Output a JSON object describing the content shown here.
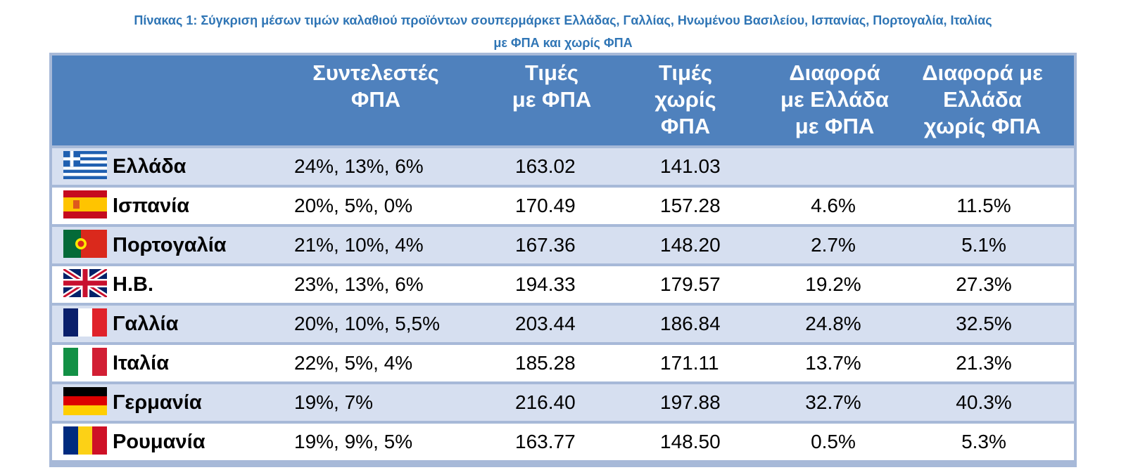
{
  "caption": {
    "line1": "Πίνακας 1: Σύγκριση μέσων τιμών καλαθιού προϊόντων σουπερμάρκετ Ελλάδας, Γαλλίας, Ηνωμένου Βασιλείου, Ισπανίας, Πορτογαλία, Ιταλίας",
    "line2": "με ΦΠΑ και χωρίς ΦΠΑ"
  },
  "header": {
    "vat": [
      "Συντελεστές",
      "ΦΠΑ"
    ],
    "price_vat": [
      "Τιμές",
      "με ΦΠΑ"
    ],
    "price_novat": [
      "Τιμές",
      "χωρίς",
      "ΦΠΑ"
    ],
    "diff_vat": [
      "Διαφορά",
      "με Ελλάδα",
      "με ΦΠΑ"
    ],
    "diff_novat": [
      "Διαφορά με",
      "Ελλάδα",
      "χωρίς ΦΠΑ"
    ]
  },
  "rows": [
    {
      "flag": "greece-flag",
      "country": "Ελλάδα",
      "vat": "24%, 13%, 6%",
      "price_vat": "163.02",
      "price_novat": "141.03",
      "diff_vat": "",
      "diff_novat": ""
    },
    {
      "flag": "spain-flag",
      "country": "Ισπανία",
      "vat": "20%, 5%, 0%",
      "price_vat": "170.49",
      "price_novat": "157.28",
      "diff_vat": "4.6%",
      "diff_novat": "11.5%"
    },
    {
      "flag": "portugal-flag",
      "country": "Πορτογαλία",
      "vat": "21%, 10%, 4%",
      "price_vat": "167.36",
      "price_novat": "148.20",
      "diff_vat": "2.7%",
      "diff_novat": "5.1%"
    },
    {
      "flag": "uk-flag",
      "country": "Η.Β.",
      "vat": "23%, 13%, 6%",
      "price_vat": "194.33",
      "price_novat": "179.57",
      "diff_vat": "19.2%",
      "diff_novat": "27.3%"
    },
    {
      "flag": "france-flag",
      "country": "Γαλλία",
      "vat": "20%, 10%, 5,5%",
      "price_vat": "203.44",
      "price_novat": "186.84",
      "diff_vat": "24.8%",
      "diff_novat": "32.5%"
    },
    {
      "flag": "italy-flag",
      "country": "Ιταλία",
      "vat": "22%, 5%, 4%",
      "price_vat": "185.28",
      "price_novat": "171.11",
      "diff_vat": "13.7%",
      "diff_novat": "21.3%"
    },
    {
      "flag": "germany-flag",
      "country": "Γερμανία",
      "vat": "19%, 7%",
      "price_vat": "216.40",
      "price_novat": "197.88",
      "diff_vat": "32.7%",
      "diff_novat": "40.3%"
    },
    {
      "flag": "romania-flag",
      "country": "Ρουμανία",
      "vat": "19%, 9%, 5%",
      "price_vat": "163.77",
      "price_novat": "148.50",
      "diff_vat": "0.5%",
      "diff_novat": "5.3%"
    }
  ],
  "colors": {
    "caption": "#2f75b5",
    "header_bg": "#4f81bd",
    "row_alt": "#d6dff0",
    "row_plain": "#ffffff",
    "border": "#a7b9d8"
  }
}
